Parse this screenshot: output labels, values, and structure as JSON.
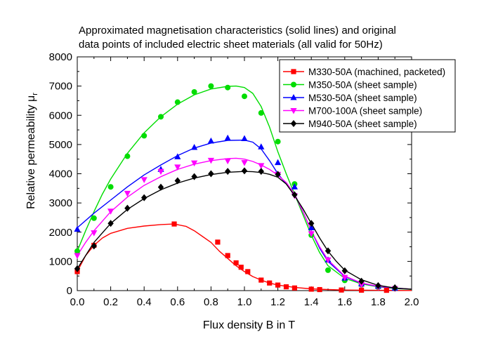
{
  "chart_data": {
    "type": "line",
    "title_line1": "Approximated magnetisation characteristics (solid lines) and original",
    "title_line2": "data points of included electric sheet materials (all valid for 50Hz)",
    "xlabel": "Flux density B in T",
    "ylabel": "Relative permeability μ",
    "ylabel_sub": "r",
    "xlim": [
      0,
      2.0
    ],
    "ylim": [
      0,
      8000
    ],
    "xticks": [
      "0.0",
      "0.2",
      "0.4",
      "0.6",
      "0.8",
      "1.0",
      "1.2",
      "1.4",
      "1.6",
      "1.8",
      "2.0"
    ],
    "yticks": [
      "0",
      "1000",
      "2000",
      "3000",
      "4000",
      "5000",
      "6000",
      "7000",
      "8000"
    ],
    "legend_position": "top-right",
    "series": [
      {
        "name": "M330-50A (machined, packeted)",
        "color": "#ff0000",
        "marker": "square",
        "points": [
          [
            0.0,
            650
          ],
          [
            0.1,
            1550
          ],
          [
            0.58,
            2280
          ],
          [
            0.84,
            1660
          ],
          [
            0.9,
            1200
          ],
          [
            0.95,
            950
          ],
          [
            0.98,
            800
          ],
          [
            1.02,
            650
          ],
          [
            1.1,
            360
          ],
          [
            1.15,
            260
          ],
          [
            1.2,
            190
          ],
          [
            1.25,
            130
          ],
          [
            1.3,
            90
          ],
          [
            1.4,
            50
          ],
          [
            1.45,
            35
          ],
          [
            1.58,
            20
          ],
          [
            1.7,
            15
          ],
          [
            1.85,
            10
          ]
        ],
        "curve": [
          [
            0.0,
            650
          ],
          [
            0.05,
            1200
          ],
          [
            0.1,
            1550
          ],
          [
            0.15,
            1800
          ],
          [
            0.2,
            1960
          ],
          [
            0.3,
            2130
          ],
          [
            0.4,
            2210
          ],
          [
            0.5,
            2260
          ],
          [
            0.58,
            2280
          ],
          [
            0.65,
            2200
          ],
          [
            0.7,
            2050
          ],
          [
            0.75,
            1850
          ],
          [
            0.8,
            1650
          ],
          [
            0.85,
            1350
          ],
          [
            0.9,
            1100
          ],
          [
            0.95,
            850
          ],
          [
            1.0,
            650
          ],
          [
            1.05,
            480
          ],
          [
            1.1,
            360
          ],
          [
            1.15,
            260
          ],
          [
            1.2,
            190
          ],
          [
            1.3,
            110
          ],
          [
            1.4,
            60
          ],
          [
            1.5,
            35
          ],
          [
            1.6,
            20
          ],
          [
            1.8,
            10
          ],
          [
            2.0,
            5
          ]
        ]
      },
      {
        "name": "M350-50A (sheet sample)",
        "color": "#00dd00",
        "marker": "circle",
        "points": [
          [
            0.0,
            1350
          ],
          [
            0.1,
            2480
          ],
          [
            0.2,
            3550
          ],
          [
            0.3,
            4600
          ],
          [
            0.4,
            5300
          ],
          [
            0.5,
            5950
          ],
          [
            0.6,
            6450
          ],
          [
            0.7,
            6800
          ],
          [
            0.8,
            7000
          ],
          [
            0.9,
            6950
          ],
          [
            1.0,
            6650
          ],
          [
            1.1,
            6080
          ],
          [
            1.2,
            5100
          ],
          [
            1.3,
            3650
          ],
          [
            1.4,
            1900
          ],
          [
            1.5,
            700
          ],
          [
            1.6,
            350
          ],
          [
            1.7,
            200
          ],
          [
            1.8,
            120
          ],
          [
            1.9,
            70
          ]
        ],
        "curve": [
          [
            0.0,
            1350
          ],
          [
            0.05,
            2050
          ],
          [
            0.1,
            2700
          ],
          [
            0.15,
            3300
          ],
          [
            0.2,
            3820
          ],
          [
            0.3,
            4700
          ],
          [
            0.4,
            5400
          ],
          [
            0.5,
            5950
          ],
          [
            0.6,
            6380
          ],
          [
            0.7,
            6700
          ],
          [
            0.8,
            6900
          ],
          [
            0.9,
            6990
          ],
          [
            0.95,
            7000
          ],
          [
            1.0,
            6950
          ],
          [
            1.05,
            6750
          ],
          [
            1.1,
            6300
          ],
          [
            1.15,
            5600
          ],
          [
            1.2,
            4750
          ],
          [
            1.25,
            4000
          ],
          [
            1.3,
            3300
          ],
          [
            1.35,
            2600
          ],
          [
            1.4,
            1900
          ],
          [
            1.45,
            1300
          ],
          [
            1.5,
            850
          ],
          [
            1.6,
            420
          ],
          [
            1.7,
            230
          ],
          [
            1.8,
            130
          ],
          [
            1.9,
            70
          ],
          [
            2.0,
            40
          ]
        ]
      },
      {
        "name": "M530-50A (sheet sample)",
        "color": "#0000ff",
        "marker": "triangle-up",
        "points": [
          [
            0.0,
            2100
          ],
          [
            0.5,
            4150
          ],
          [
            0.6,
            4580
          ],
          [
            0.7,
            4900
          ],
          [
            0.8,
            5120
          ],
          [
            0.9,
            5220
          ],
          [
            1.0,
            5200
          ],
          [
            1.1,
            4920
          ],
          [
            1.2,
            4380
          ],
          [
            1.3,
            3550
          ],
          [
            1.4,
            2150
          ],
          [
            1.5,
            1050
          ],
          [
            1.6,
            430
          ],
          [
            1.7,
            230
          ],
          [
            1.8,
            150
          ],
          [
            1.9,
            80
          ]
        ],
        "curve": [
          [
            0.0,
            2150
          ],
          [
            0.1,
            2650
          ],
          [
            0.2,
            3100
          ],
          [
            0.3,
            3550
          ],
          [
            0.4,
            3960
          ],
          [
            0.5,
            4300
          ],
          [
            0.6,
            4620
          ],
          [
            0.7,
            4880
          ],
          [
            0.8,
            5050
          ],
          [
            0.9,
            5140
          ],
          [
            1.0,
            5150
          ],
          [
            1.05,
            5080
          ],
          [
            1.1,
            4850
          ],
          [
            1.15,
            4450
          ],
          [
            1.2,
            4000
          ],
          [
            1.25,
            3650
          ],
          [
            1.3,
            3300
          ],
          [
            1.35,
            2700
          ],
          [
            1.4,
            2050
          ],
          [
            1.45,
            1450
          ],
          [
            1.5,
            1000
          ],
          [
            1.6,
            480
          ],
          [
            1.7,
            250
          ],
          [
            1.8,
            140
          ],
          [
            1.9,
            80
          ],
          [
            2.0,
            50
          ]
        ]
      },
      {
        "name": "M700-100A (sheet sample)",
        "color": "#ff00ff",
        "marker": "triangle-down",
        "points": [
          [
            0.0,
            1200
          ],
          [
            0.1,
            1980
          ],
          [
            0.2,
            2720
          ],
          [
            0.3,
            3330
          ],
          [
            0.4,
            3800
          ],
          [
            0.5,
            4080
          ],
          [
            0.6,
            4230
          ],
          [
            0.7,
            4370
          ],
          [
            0.8,
            4460
          ],
          [
            0.9,
            4440
          ],
          [
            1.0,
            4380
          ],
          [
            1.1,
            4280
          ],
          [
            1.2,
            3980
          ],
          [
            1.3,
            3250
          ],
          [
            1.4,
            1950
          ],
          [
            1.5,
            1050
          ],
          [
            1.6,
            450
          ],
          [
            1.7,
            200
          ],
          [
            1.8,
            120
          ],
          [
            1.9,
            70
          ]
        ],
        "curve": [
          [
            0.0,
            1200
          ],
          [
            0.05,
            1650
          ],
          [
            0.1,
            2050
          ],
          [
            0.2,
            2700
          ],
          [
            0.3,
            3200
          ],
          [
            0.4,
            3600
          ],
          [
            0.5,
            3900
          ],
          [
            0.6,
            4150
          ],
          [
            0.7,
            4330
          ],
          [
            0.8,
            4450
          ],
          [
            0.9,
            4520
          ],
          [
            0.95,
            4530
          ],
          [
            1.0,
            4500
          ],
          [
            1.05,
            4420
          ],
          [
            1.1,
            4300
          ],
          [
            1.15,
            4150
          ],
          [
            1.2,
            3950
          ],
          [
            1.25,
            3700
          ],
          [
            1.3,
            3300
          ],
          [
            1.35,
            2700
          ],
          [
            1.4,
            2050
          ],
          [
            1.45,
            1500
          ],
          [
            1.5,
            1050
          ],
          [
            1.6,
            500
          ],
          [
            1.7,
            260
          ],
          [
            1.8,
            150
          ],
          [
            1.9,
            90
          ],
          [
            2.0,
            50
          ]
        ]
      },
      {
        "name": "M940-50A (sheet sample)",
        "color": "#000000",
        "marker": "diamond",
        "points": [
          [
            0.0,
            750
          ],
          [
            0.1,
            1530
          ],
          [
            0.2,
            2300
          ],
          [
            0.3,
            2820
          ],
          [
            0.4,
            3180
          ],
          [
            0.5,
            3540
          ],
          [
            0.6,
            3760
          ],
          [
            0.7,
            3900
          ],
          [
            0.8,
            4000
          ],
          [
            0.9,
            4080
          ],
          [
            1.0,
            4100
          ],
          [
            1.1,
            4080
          ],
          [
            1.2,
            3980
          ],
          [
            1.3,
            3280
          ],
          [
            1.4,
            2300
          ],
          [
            1.5,
            1360
          ],
          [
            1.6,
            680
          ],
          [
            1.7,
            320
          ],
          [
            1.8,
            170
          ],
          [
            1.9,
            100
          ]
        ],
        "curve": [
          [
            0.0,
            750
          ],
          [
            0.05,
            1200
          ],
          [
            0.1,
            1650
          ],
          [
            0.2,
            2300
          ],
          [
            0.3,
            2780
          ],
          [
            0.4,
            3150
          ],
          [
            0.5,
            3450
          ],
          [
            0.6,
            3680
          ],
          [
            0.7,
            3850
          ],
          [
            0.8,
            3970
          ],
          [
            0.9,
            4050
          ],
          [
            1.0,
            4080
          ],
          [
            1.05,
            4070
          ],
          [
            1.1,
            4040
          ],
          [
            1.15,
            3980
          ],
          [
            1.2,
            3880
          ],
          [
            1.25,
            3650
          ],
          [
            1.3,
            3250
          ],
          [
            1.35,
            2800
          ],
          [
            1.4,
            2300
          ],
          [
            1.45,
            1800
          ],
          [
            1.5,
            1350
          ],
          [
            1.55,
            1000
          ],
          [
            1.6,
            700
          ],
          [
            1.7,
            370
          ],
          [
            1.8,
            180
          ],
          [
            1.9,
            90
          ],
          [
            2.0,
            50
          ]
        ]
      }
    ]
  }
}
